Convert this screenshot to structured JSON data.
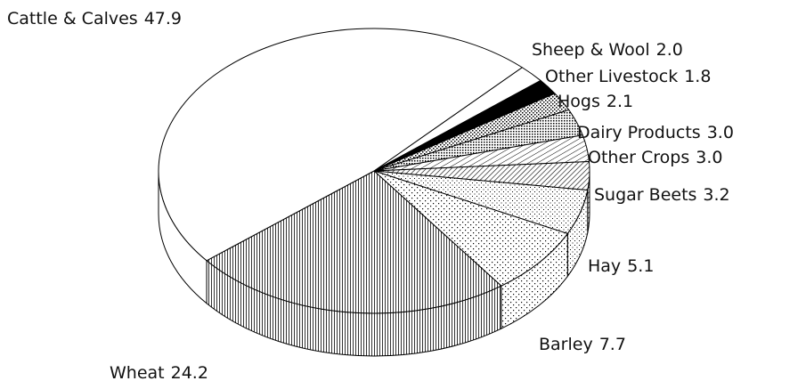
{
  "chart_data": {
    "type": "pie",
    "categories": [
      "Cattle & Calves",
      "Sheep & Wool",
      "Other Livestock",
      "Hogs",
      "Dairy Products",
      "Other Crops",
      "Sugar Beets",
      "Hay",
      "Barley",
      "Wheat"
    ],
    "values": [
      47.9,
      2.0,
      1.8,
      2.1,
      3.0,
      3.0,
      3.2,
      5.1,
      7.7,
      24.2
    ],
    "value_labels": [
      "47.9",
      "2.0",
      "1.8",
      "2.1",
      "3.0",
      "3.0",
      "3.2",
      "5.1",
      "7.7",
      "24.2"
    ]
  }
}
